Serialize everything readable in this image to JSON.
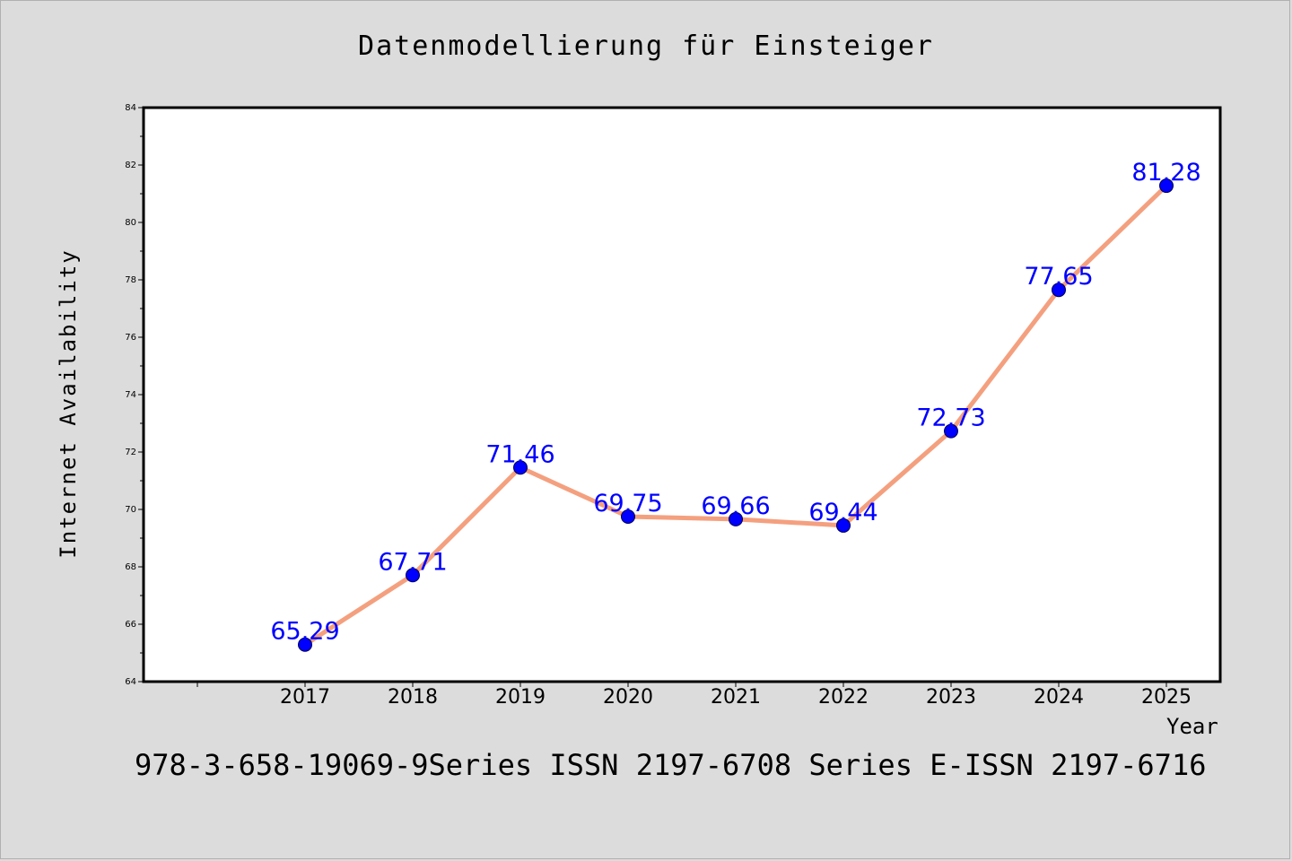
{
  "chart_data": {
    "type": "line",
    "title": "Datenmodellierung für Einsteiger",
    "xlabel": "Year",
    "ylabel": "Internet Availability",
    "x": [
      "2017",
      "2018",
      "2019",
      "2020",
      "2021",
      "2022",
      "2023",
      "2024",
      "2025"
    ],
    "series": [
      {
        "values": [
          65.29,
          67.71,
          71.46,
          69.75,
          69.66,
          69.44,
          72.73,
          77.65,
          81.28
        ],
        "data_labels": [
          "65.29",
          "67.71",
          "71.46",
          "69.75",
          "69.66",
          "69.44",
          "72.73",
          "77.65",
          "81.28"
        ],
        "line_color": "#f4a07f",
        "marker_color": "#0000ff",
        "label_color": "#0000ff"
      }
    ],
    "ylim": [
      64,
      84
    ],
    "yticks": [
      "64",
      "66",
      "68",
      "70",
      "72",
      "74",
      "76",
      "78",
      "80",
      "82",
      "84"
    ],
    "grid": false,
    "legend": "none"
  },
  "footer": "978-3-658-19069-9Series ISSN 2197-6708 Series E-ISSN 2197-6716",
  "colors": {
    "background": "#dcdcdc",
    "plot_background": "#ffffff",
    "axis": "#000000"
  }
}
